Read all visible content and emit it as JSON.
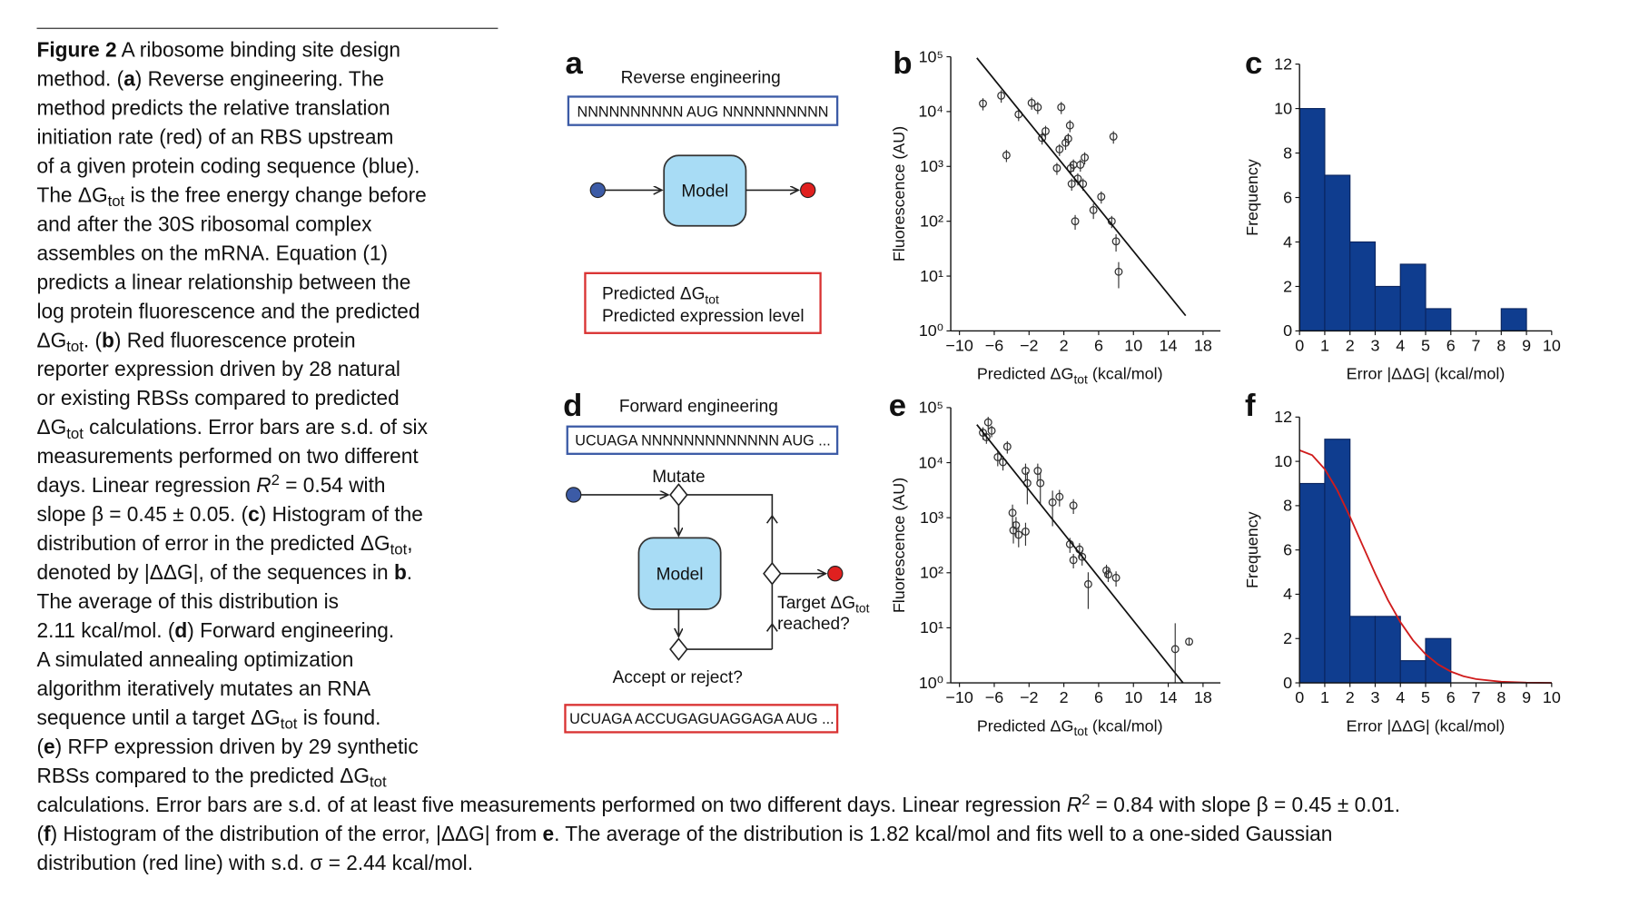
{
  "caption": {
    "lines": [
      [
        "Figure 2",
        " A ribosome binding site design"
      ],
      [
        "method. (",
        "a",
        ") Reverse engineering. The"
      ],
      [
        "method predicts the relative translation"
      ],
      [
        "initiation rate (red) of an RBS upstream"
      ],
      [
        "of a given protein coding sequence (blue)."
      ],
      [
        "The ΔG",
        "tot",
        " is the free energy change before"
      ],
      [
        "and after the 30S ribosomal complex"
      ],
      [
        "assembles on the mRNA. Equation (1)"
      ],
      [
        "predicts a linear relationship between the"
      ],
      [
        "log protein fluorescence and the predicted"
      ],
      [
        "ΔG",
        "tot",
        ". (",
        "b",
        ") Red fluorescence protein"
      ],
      [
        "reporter expression driven by 28 natural"
      ],
      [
        "or existing RBSs compared to predicted"
      ],
      [
        "ΔG",
        "tot",
        " calculations. Error bars are s.d. of six"
      ],
      [
        "measurements performed on two different"
      ],
      [
        "days. Linear regression ",
        "R",
        "2",
        " = 0.54 with"
      ],
      [
        "slope β = 0.45 ± 0.05. (",
        "c",
        ") Histogram of the"
      ],
      [
        "distribution of error in the predicted ΔG",
        "tot",
        ","
      ],
      [
        "denoted by |ΔΔG|, of the sequences in ",
        "b",
        "."
      ],
      [
        "The average of this distribution is"
      ],
      [
        "2.11 kcal/mol. (",
        "d",
        ") Forward engineering."
      ],
      [
        "A simulated annealing optimization"
      ],
      [
        "algorithm iteratively mutates an RNA"
      ],
      [
        "sequence until a target ΔG",
        "tot",
        " is found."
      ],
      [
        "(",
        "e",
        ") RFP expression driven by 29 synthetic"
      ],
      [
        "RBSs compared to the predicted ΔG",
        "tot"
      ],
      [
        "calculations. Error bars are s.d. of at least five measurements performed on two different days. Linear regression ",
        "R",
        "2",
        " = 0.84 with slope β = 0.45 ± 0.01."
      ],
      [
        "(",
        "f",
        ") Histogram of the distribution of the error, |ΔΔG| from ",
        "e",
        ". The average of the distribution is 1.82 kcal/mol and fits well to a one-sided Gaussian"
      ],
      [
        "distribution (red line) with s.d. σ = 2.44 kcal/mol."
      ]
    ]
  },
  "diagrams": {
    "a": {
      "label": "a",
      "title": "Reverse engineering",
      "input": "NNNNNNNNNN AUG NNNNNNNNNN",
      "model": "Model",
      "output": [
        "Predicted ΔG",
        "tot",
        "Predicted expression level"
      ]
    },
    "d": {
      "label": "d",
      "title": "Forward engineering",
      "input": "UCUAGA NNNNNNNNNNNNN AUG ...",
      "mutate": "Mutate",
      "model": "Model",
      "target": [
        "Target ΔG",
        "tot",
        "reached?"
      ],
      "accept": "Accept or reject?",
      "output": "UCUAGA ACCUGAGUAGGAGA AUG ..."
    }
  },
  "chart_data": [
    {
      "type": "scatter",
      "label": "b",
      "ylabel": "Fluorescence (AU)",
      "xlabel": [
        "Predicted ΔG",
        "tot",
        " (kcal/mol)"
      ],
      "ylog": true,
      "color": "#333333",
      "xlim": [
        -11,
        20
      ],
      "xticks": [
        {
          "value": -10,
          "label": "−10"
        },
        {
          "value": -6,
          "label": "−6"
        },
        {
          "value": -2,
          "label": "−2"
        },
        2,
        6,
        10,
        14,
        18
      ],
      "ylim": [
        1,
        100000
      ],
      "yticks": [
        {
          "value": 1,
          "label": "10⁰"
        },
        {
          "value": 10,
          "label": "10¹"
        },
        {
          "value": 100,
          "label": "10²"
        },
        {
          "value": 1000,
          "label": "10³"
        },
        {
          "value": 10000,
          "label": "10⁴"
        },
        {
          "value": 100000,
          "label": "10⁵"
        }
      ],
      "x": [
        -7.3,
        -5.2,
        -4.6,
        -3.2,
        -1.7,
        -1.0,
        -0.5,
        -0.1,
        1.2,
        1.7,
        1.5,
        2.2,
        2.5,
        2.7,
        2.8,
        2.9,
        3.3,
        3.1,
        3.6,
        3.9,
        4.2,
        4.4,
        5.4,
        6.3,
        7.5,
        8.0,
        8.3,
        7.7
      ],
      "values": [
        14000,
        19500,
        1600,
        8900,
        14400,
        12000,
        3300,
        4400,
        930,
        12000,
        2050,
        2700,
        3200,
        5600,
        930,
        480,
        100,
        1070,
        600,
        1070,
        480,
        1450,
        160,
        280,
        100,
        43,
        12,
        3500
      ],
      "errors": [
        3500,
        5000,
        400,
        2200,
        3600,
        3000,
        800,
        1100,
        230,
        3000,
        500,
        700,
        800,
        1400,
        230,
        120,
        30,
        270,
        150,
        270,
        120,
        360,
        50,
        70,
        25,
        15,
        6,
        900
      ],
      "fit": {
        "x": [
          -8,
          16
        ],
        "values": [
          95000,
          1.9
        ]
      }
    },
    {
      "type": "histogram",
      "label": "c",
      "ylabel": "Frequency",
      "xlabel": [
        "Error |ΔΔG| (kcal/mol)"
      ],
      "color": "#0f3d8f",
      "xlim": [
        0,
        10
      ],
      "xticks": [
        0,
        1,
        2,
        3,
        4,
        5,
        6,
        7,
        8,
        9,
        10
      ],
      "ylim": [
        0,
        12
      ],
      "yticks": [
        0,
        2,
        4,
        6,
        8,
        10,
        12
      ],
      "bins": [
        0,
        1,
        2,
        3,
        4,
        5,
        6,
        7,
        8,
        9,
        10
      ],
      "values": [
        10,
        7,
        4,
        2,
        3,
        1,
        0,
        0,
        1,
        0
      ]
    },
    {
      "type": "scatter",
      "label": "e",
      "ylabel": "Fluorescence (AU)",
      "xlabel": [
        "Predicted ΔG",
        "tot",
        " (kcal/mol)"
      ],
      "ylog": true,
      "color": "#333333",
      "xlim": [
        -11,
        20
      ],
      "xticks": [
        {
          "value": -10,
          "label": "−10"
        },
        {
          "value": -6,
          "label": "−6"
        },
        {
          "value": -2,
          "label": "−2"
        },
        2,
        6,
        10,
        14,
        18
      ],
      "ylim": [
        1,
        100000
      ],
      "yticks": [
        {
          "value": 1,
          "label": "10⁰"
        },
        {
          "value": 10,
          "label": "10¹"
        },
        {
          "value": 100,
          "label": "10²"
        },
        {
          "value": 1000,
          "label": "10³"
        },
        {
          "value": 10000,
          "label": "10⁴"
        },
        {
          "value": 100000,
          "label": "10⁵"
        }
      ],
      "x": [
        -7.3,
        -6.9,
        -6.7,
        -6.3,
        -5.6,
        -5.0,
        -4.5,
        -3.9,
        -3.8,
        -3.5,
        -3.2,
        -2.4,
        -2.4,
        -2.2,
        -1.0,
        -0.7,
        0.7,
        1.5,
        3.1,
        2.7,
        3.1,
        3.8,
        4.1,
        4.8,
        6.9,
        7.1,
        8.0,
        14.8,
        16.4
      ],
      "values": [
        35000,
        29000,
        54000,
        38000,
        12600,
        10200,
        19600,
        1230,
        590,
        730,
        490,
        560,
        7100,
        4250,
        7100,
        4250,
        1900,
        2400,
        1670,
        330,
        170,
        265,
        195,
        62,
        110,
        93,
        81,
        4.1,
        5.6
      ],
      "errors": [
        9000,
        7000,
        14000,
        9000,
        4000,
        3000,
        5000,
        500,
        250,
        300,
        200,
        250,
        2500,
        2500,
        2500,
        2500,
        1200,
        800,
        500,
        100,
        50,
        80,
        60,
        40,
        30,
        25,
        25,
        8,
        0.8
      ],
      "fit": {
        "x": [
          -8,
          15.7
        ],
        "values": [
          49000,
          1
        ]
      }
    },
    {
      "type": "histogram",
      "label": "f",
      "ylabel": "Frequency",
      "xlabel": [
        "Error |ΔΔG| (kcal/mol)"
      ],
      "color": "#0f3d8f",
      "xlim": [
        0,
        10
      ],
      "xticks": [
        0,
        1,
        2,
        3,
        4,
        5,
        6,
        7,
        8,
        9,
        10
      ],
      "ylim": [
        0,
        12
      ],
      "yticks": [
        0,
        2,
        4,
        6,
        8,
        10,
        12
      ],
      "bins": [
        0,
        1,
        2,
        3,
        4,
        5,
        6,
        7,
        8,
        9,
        10
      ],
      "values": [
        9,
        11,
        3,
        3,
        1,
        2,
        0,
        0,
        0,
        0
      ],
      "curve": {
        "color": "#d01c1c",
        "x": [
          0,
          0.5,
          1,
          1.5,
          2,
          2.5,
          3,
          3.5,
          4,
          4.5,
          5,
          5.5,
          6,
          6.5,
          7,
          8,
          9,
          10
        ],
        "values": [
          10.5,
          10.28,
          9.65,
          8.69,
          7.5,
          6.21,
          4.93,
          3.75,
          2.74,
          1.92,
          1.29,
          0.83,
          0.51,
          0.3,
          0.17,
          0.05,
          0.01,
          0
        ]
      }
    }
  ]
}
